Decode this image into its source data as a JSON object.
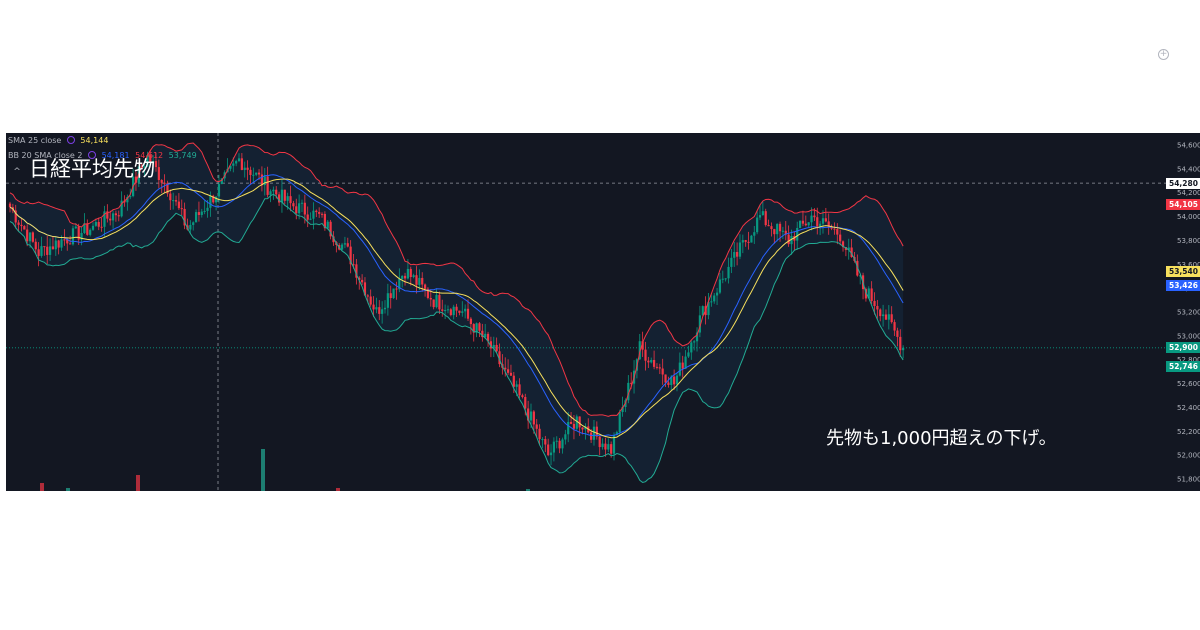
{
  "legend": {
    "sma": {
      "label": "SMA 25 close",
      "value": "54,144",
      "color": "#f7e05d"
    },
    "bb": {
      "label": "BB 20 SMA close 2",
      "values": [
        "54,181",
        "54,612",
        "53,749"
      ],
      "colors": [
        "#2962ff",
        "#f23645",
        "#22ab94"
      ]
    }
  },
  "overlay": {
    "title": "日経平均先物",
    "note": "先物も1,000円超えの下げ。"
  },
  "price_tags": [
    {
      "text": "54,280",
      "bg": "#ffffff",
      "fg": "#131722",
      "price": 54280
    },
    {
      "text": "54,105",
      "bg": "#f23645",
      "fg": "#ffffff",
      "price": 54105
    },
    {
      "text": "53,540",
      "bg": "#f7e05d",
      "fg": "#131722",
      "price": 53540
    },
    {
      "text": "53,426",
      "bg": "#2962ff",
      "fg": "#ffffff",
      "price": 53426
    },
    {
      "text": "52,900",
      "bg": "#089981",
      "fg": "#ffffff",
      "price": 52900
    },
    {
      "text": "52,746",
      "bg": "#089981",
      "fg": "#ffffff",
      "price": 52746
    }
  ],
  "chart_data": {
    "type": "candlestick",
    "y_ticks": [
      "54,600",
      "54,400",
      "54,200",
      "54,000",
      "53,800",
      "53,600",
      "53,400",
      "53,200",
      "53,000",
      "52,800",
      "52,600",
      "52,400",
      "52,200",
      "52,000",
      "51,800"
    ],
    "ylim": [
      51700,
      54700
    ],
    "crosshair_price": 54280,
    "last_price": 52900,
    "anchors": [
      [
        0,
        54080
      ],
      [
        10,
        53700
      ],
      [
        18,
        53800
      ],
      [
        28,
        53900
      ],
      [
        38,
        54050
      ],
      [
        48,
        54500
      ],
      [
        55,
        54250
      ],
      [
        62,
        53900
      ],
      [
        72,
        54200
      ],
      [
        80,
        54480
      ],
      [
        90,
        54250
      ],
      [
        98,
        54100
      ],
      [
        108,
        54000
      ],
      [
        118,
        53700
      ],
      [
        128,
        53200
      ],
      [
        138,
        53550
      ],
      [
        148,
        53300
      ],
      [
        158,
        53200
      ],
      [
        168,
        52900
      ],
      [
        180,
        52400
      ],
      [
        188,
        52000
      ],
      [
        198,
        52300
      ],
      [
        210,
        52050
      ],
      [
        220,
        52900
      ],
      [
        232,
        52600
      ],
      [
        242,
        53200
      ],
      [
        252,
        53600
      ],
      [
        262,
        54000
      ],
      [
        272,
        53800
      ],
      [
        280,
        54000
      ],
      [
        290,
        53850
      ],
      [
        298,
        53400
      ],
      [
        305,
        53200
      ],
      [
        312,
        52900
      ]
    ],
    "series": [
      {
        "name": "SMA 25 close",
        "color": "#f7e05d"
      },
      {
        "name": "BB 20 SMA close 2",
        "color": "#2962ff"
      },
      {
        "name": "upper",
        "color": "#f23645"
      },
      {
        "name": "lower",
        "color": "#22ab94"
      }
    ],
    "colors": {
      "up": "#089981",
      "down": "#f23645"
    }
  }
}
